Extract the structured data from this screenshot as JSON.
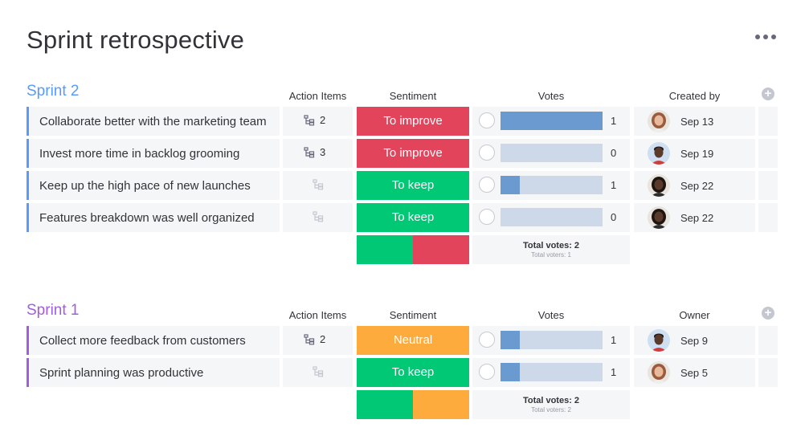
{
  "page": {
    "title": "Sprint retrospective"
  },
  "colors": {
    "sprint2": "#579bfc",
    "sprint1": "#a25ddc",
    "to_improve": "#e2445c",
    "to_keep": "#00c875",
    "neutral": "#fdab3d"
  },
  "groups": [
    {
      "title": "Sprint 2",
      "color": "#579bfc",
      "columns": {
        "action_items": "Action Items",
        "sentiment": "Sentiment",
        "votes": "Votes",
        "person": "Created by"
      },
      "rows": [
        {
          "name": "Collaborate better with the marketing team",
          "action_items": "2",
          "sentiment": "To improve",
          "sentiment_color": "#e2445c",
          "votes": "1",
          "vote_fill": 1.0,
          "date": "Sep 13",
          "avatar": "woman-light"
        },
        {
          "name": "Invest more time in backlog grooming",
          "action_items": "3",
          "sentiment": "To improve",
          "sentiment_color": "#e2445c",
          "votes": "0",
          "vote_fill": 0.0,
          "date": "Sep 19",
          "avatar": "man-dark"
        },
        {
          "name": "Keep up the high pace of new launches",
          "action_items": "",
          "sentiment": "To keep",
          "sentiment_color": "#00c875",
          "votes": "1",
          "vote_fill": 0.19,
          "date": "Sep 22",
          "avatar": "woman-dark"
        },
        {
          "name": "Features breakdown was well organized",
          "action_items": "",
          "sentiment": "To keep",
          "sentiment_color": "#00c875",
          "votes": "0",
          "vote_fill": 0.0,
          "date": "Sep 22",
          "avatar": "woman-dark"
        }
      ],
      "summary": {
        "sentiment_split": [
          {
            "color": "#00c875",
            "share": 0.5
          },
          {
            "color": "#e2445c",
            "share": 0.5
          }
        ],
        "total_votes": "Total votes: 2",
        "total_voters": "Total voters: 1"
      }
    },
    {
      "title": "Sprint 1",
      "color": "#a25ddc",
      "columns": {
        "action_items": "Action Items",
        "sentiment": "Sentiment",
        "votes": "Votes",
        "person": "Owner"
      },
      "rows": [
        {
          "name": "Collect more feedback from customers",
          "action_items": "2",
          "sentiment": "Neutral",
          "sentiment_color": "#fdab3d",
          "votes": "1",
          "vote_fill": 0.19,
          "date": "Sep 9",
          "avatar": "man-dark"
        },
        {
          "name": "Sprint planning was productive",
          "action_items": "",
          "sentiment": "To keep",
          "sentiment_color": "#00c875",
          "votes": "1",
          "vote_fill": 0.19,
          "date": "Sep 5",
          "avatar": "woman-light"
        }
      ],
      "summary": {
        "sentiment_split": [
          {
            "color": "#00c875",
            "share": 0.5
          },
          {
            "color": "#fdab3d",
            "share": 0.5
          }
        ],
        "total_votes": "Total votes: 2",
        "total_voters": "Total voters: 2"
      }
    }
  ]
}
